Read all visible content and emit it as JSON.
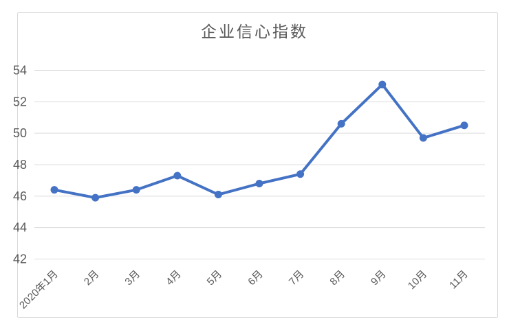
{
  "chart_data": {
    "type": "line",
    "title": "企业信心指数",
    "categories": [
      "2020年1月",
      "2月",
      "3月",
      "4月",
      "5月",
      "6月",
      "7月",
      "8月",
      "9月",
      "10月",
      "11月"
    ],
    "series": [
      {
        "name": "企业信心指数",
        "values": [
          46.4,
          45.9,
          46.4,
          47.3,
          46.1,
          46.8,
          47.4,
          50.6,
          53.1,
          49.7,
          50.5
        ],
        "color": "#4472C4"
      }
    ],
    "xlabel": "",
    "ylabel": "",
    "ylim": [
      42,
      54
    ],
    "y_ticks": [
      42,
      44,
      46,
      48,
      50,
      52,
      54
    ],
    "grid": true,
    "legend_position": "none",
    "styles": {
      "line_color": "#4472C4",
      "marker_color": "#4472C4",
      "grid_color": "#dcdcdc",
      "tick_label_color": "#595959",
      "title_color": "#595959",
      "frame_border_color": "#d9d9d9",
      "background": "#ffffff"
    }
  }
}
